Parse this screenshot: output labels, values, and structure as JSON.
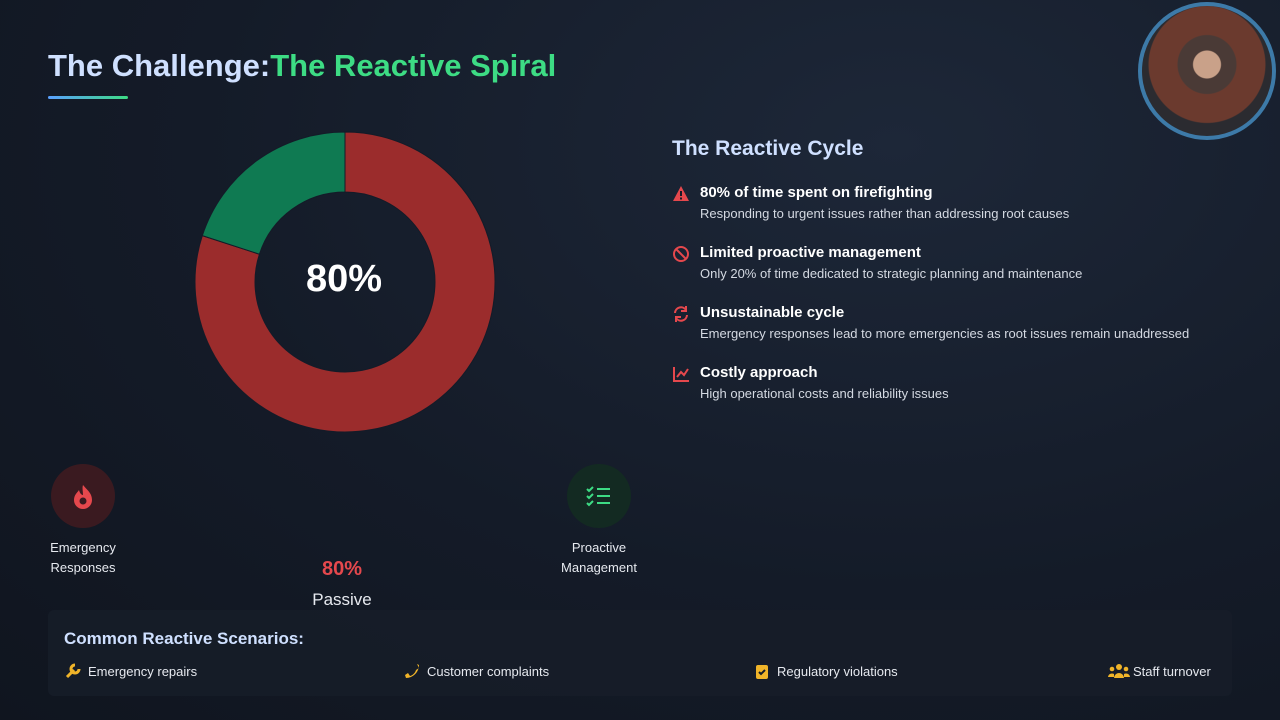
{
  "header": {
    "title_prefix": "The Challenge:",
    "title_highlight": "The Reactive Spiral"
  },
  "chart_data": {
    "type": "pie",
    "donut": true,
    "categories": [
      "Emergency Responses",
      "Proactive Management"
    ],
    "values": [
      80,
      20
    ],
    "colors": [
      "#9b2c2c",
      "#0f7a52"
    ],
    "center_label": "80%"
  },
  "stat": {
    "value": "80%",
    "label": "Passive"
  },
  "cycle": {
    "title": "The Reactive Cycle",
    "items": [
      {
        "title": "80% of time spent on firefighting",
        "desc": "Responding to urgent issues rather than addressing root causes"
      },
      {
        "title": "Limited proactive management",
        "desc": "Only 20% of time dedicated to strategic planning and maintenance"
      },
      {
        "title": "Unsustainable cycle",
        "desc": "Emergency responses lead to more emergencies as root issues remain unaddressed"
      },
      {
        "title": "Costly approach",
        "desc": "High operational costs and reliability issues"
      }
    ]
  },
  "scenarios": {
    "title": "Common Reactive Scenarios:",
    "items": [
      "Emergency repairs",
      "Customer complaints",
      "Regulatory violations",
      "Staff turnover"
    ]
  }
}
